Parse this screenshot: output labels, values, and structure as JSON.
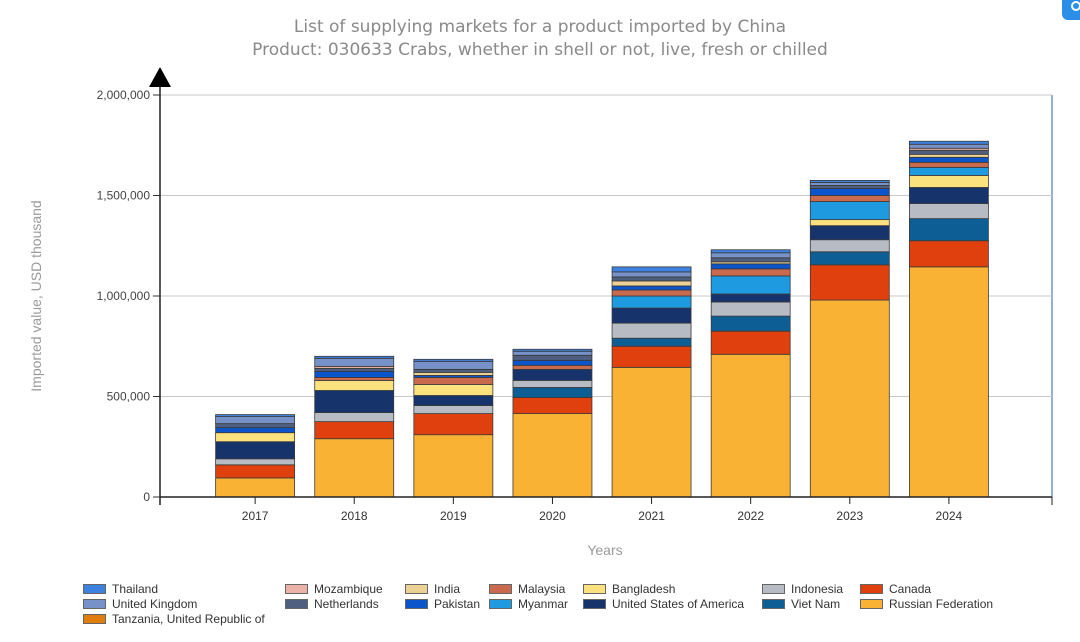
{
  "chart_data": {
    "type": "bar",
    "stacked": true,
    "title": "List of supplying markets for a product imported by China",
    "subtitle": "Product: 030633 Crabs, whether in shell or not, live, fresh or chilled",
    "xlabel": "Years",
    "ylabel": "Imported value, USD thousand",
    "ylim": [
      0,
      2000000
    ],
    "yticks": [
      0,
      500000,
      1000000,
      1500000,
      2000000
    ],
    "ytick_labels": [
      "0",
      "500,000",
      "1,000,000",
      "1,500,000",
      "2,000,000"
    ],
    "grid": true,
    "legend_position": "bottom",
    "categories": [
      "2017",
      "2018",
      "2019",
      "2020",
      "2021",
      "2022",
      "2023",
      "2024"
    ],
    "series": [
      {
        "name": "Russian Federation",
        "color": "#F9B233",
        "values": [
          95000,
          290000,
          310000,
          415000,
          645000,
          710000,
          980000,
          1145000
        ]
      },
      {
        "name": "Canada",
        "color": "#E0400E",
        "values": [
          65000,
          85000,
          105000,
          80000,
          105000,
          115000,
          175000,
          130000
        ]
      },
      {
        "name": "Viet Nam",
        "color": "#0E5E96",
        "values": [
          0,
          0,
          0,
          50000,
          40000,
          75000,
          65000,
          110000
        ]
      },
      {
        "name": "Indonesia",
        "color": "#B7BCC4",
        "values": [
          30000,
          45000,
          40000,
          35000,
          75000,
          70000,
          60000,
          75000
        ]
      },
      {
        "name": "United States of America",
        "color": "#16336B",
        "values": [
          85000,
          110000,
          50000,
          55000,
          75000,
          40000,
          70000,
          80000
        ]
      },
      {
        "name": "Bangladesh",
        "color": "#FCE17F",
        "values": [
          45000,
          50000,
          55000,
          0,
          0,
          0,
          30000,
          60000
        ]
      },
      {
        "name": "Myanmar",
        "color": "#1E9BE0",
        "values": [
          0,
          0,
          0,
          0,
          60000,
          90000,
          90000,
          40000
        ]
      },
      {
        "name": "Malaysia",
        "color": "#C96A4F",
        "values": [
          0,
          15000,
          35000,
          20000,
          30000,
          35000,
          30000,
          25000
        ]
      },
      {
        "name": "Pakistan",
        "color": "#0A55CC",
        "values": [
          25000,
          30000,
          10000,
          25000,
          20000,
          25000,
          35000,
          25000
        ]
      },
      {
        "name": "India",
        "color": "#EDD296",
        "values": [
          0,
          0,
          15000,
          0,
          25000,
          10000,
          0,
          15000
        ]
      },
      {
        "name": "Netherlands",
        "color": "#4E5F80",
        "values": [
          20000,
          15000,
          15000,
          25000,
          20000,
          20000,
          15000,
          20000
        ]
      },
      {
        "name": "Mozambique",
        "color": "#EBB2A9",
        "values": [
          0,
          10000,
          0,
          0,
          0,
          0,
          0,
          10000
        ]
      },
      {
        "name": "United Kingdom",
        "color": "#7792C8",
        "values": [
          35000,
          40000,
          40000,
          20000,
          25000,
          25000,
          15000,
          20000
        ]
      },
      {
        "name": "Tanzania, United Republic of",
        "color": "#E07F10",
        "values": [
          0,
          0,
          0,
          0,
          0,
          0,
          0,
          0
        ]
      },
      {
        "name": "Thailand",
        "color": "#3E82E0",
        "values": [
          10000,
          10000,
          10000,
          10000,
          25000,
          15000,
          10000,
          15000
        ]
      }
    ]
  }
}
